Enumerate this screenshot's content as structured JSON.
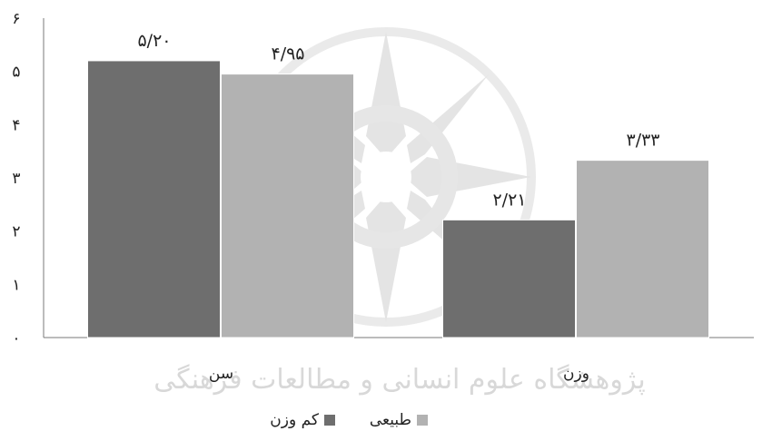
{
  "chart_data": {
    "type": "bar",
    "categories": [
      "سن",
      "وزن"
    ],
    "series": [
      {
        "name": "کم وزن",
        "values": [
          5.2,
          2.21
        ],
        "labels": [
          "۵/۲۰",
          "۲/۲۱"
        ],
        "color": "#6e6e6e"
      },
      {
        "name": "طبیعی",
        "values": [
          4.95,
          3.33
        ],
        "labels": [
          "۴/۹۵",
          "۳/۳۳"
        ],
        "color": "#b2b2b2"
      }
    ],
    "y_ticks": [
      {
        "value": 0,
        "label": "۰"
      },
      {
        "value": 1,
        "label": "۱"
      },
      {
        "value": 2,
        "label": "۲"
      },
      {
        "value": 3,
        "label": "۳"
      },
      {
        "value": 4,
        "label": "۴"
      },
      {
        "value": 5,
        "label": "۵"
      },
      {
        "value": 6,
        "label": "۶"
      }
    ],
    "ylim": [
      0,
      6
    ],
    "grid": false,
    "legend_position": "bottom",
    "title": "",
    "xlabel": "",
    "ylabel": ""
  },
  "watermark": {
    "text": "پژوهشگاه علوم انسانی و مطالعات فرهنگی",
    "color": "#d8d8d8"
  }
}
